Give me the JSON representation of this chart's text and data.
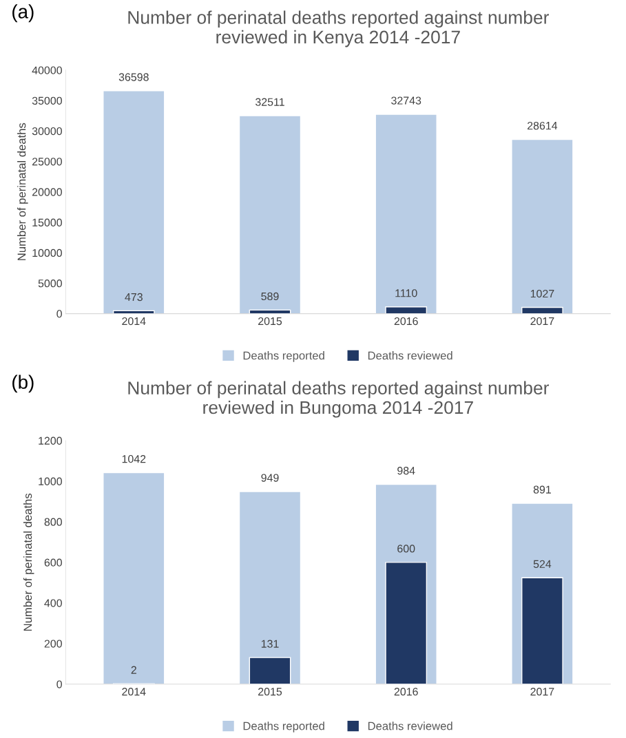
{
  "chart_data": [
    {
      "type": "bar",
      "title": "Number of perinatal deaths reported against number\nreviewed in Kenya 2014 -2017",
      "ylabel": "Number of perinatal deaths",
      "annotations": [
        "(a)"
      ],
      "categories": [
        "2014",
        "2015",
        "2016",
        "2017"
      ],
      "series": [
        {
          "name": "Deaths reported",
          "color": "#b9cde5",
          "values": [
            36598,
            32511,
            32743,
            28614
          ]
        },
        {
          "name": "Deaths reviewed",
          "color": "#203864",
          "values": [
            473,
            589,
            1110,
            1027
          ]
        }
      ],
      "ylim": [
        0,
        40000
      ],
      "yticks": [
        0,
        5000,
        10000,
        15000,
        20000,
        25000,
        30000,
        35000,
        40000
      ],
      "grid": false,
      "legend": "bottom",
      "data_labels": true
    },
    {
      "type": "bar",
      "title": "Number of perinatal deaths reported against number\nreviewed in Bungoma 2014 -2017",
      "ylabel": "Number of perinatal deaths",
      "annotations": [
        "(b)"
      ],
      "categories": [
        "2014",
        "2015",
        "2016",
        "2017"
      ],
      "series": [
        {
          "name": "Deaths reported",
          "color": "#b9cde5",
          "values": [
            1042,
            949,
            984,
            891
          ]
        },
        {
          "name": "Deaths reviewed",
          "color": "#203864",
          "values": [
            2,
            131,
            600,
            524
          ]
        }
      ],
      "ylim": [
        0,
        1200
      ],
      "yticks": [
        0,
        200,
        400,
        600,
        800,
        1000,
        1200
      ],
      "grid": false,
      "legend": "bottom",
      "data_labels": true
    }
  ]
}
